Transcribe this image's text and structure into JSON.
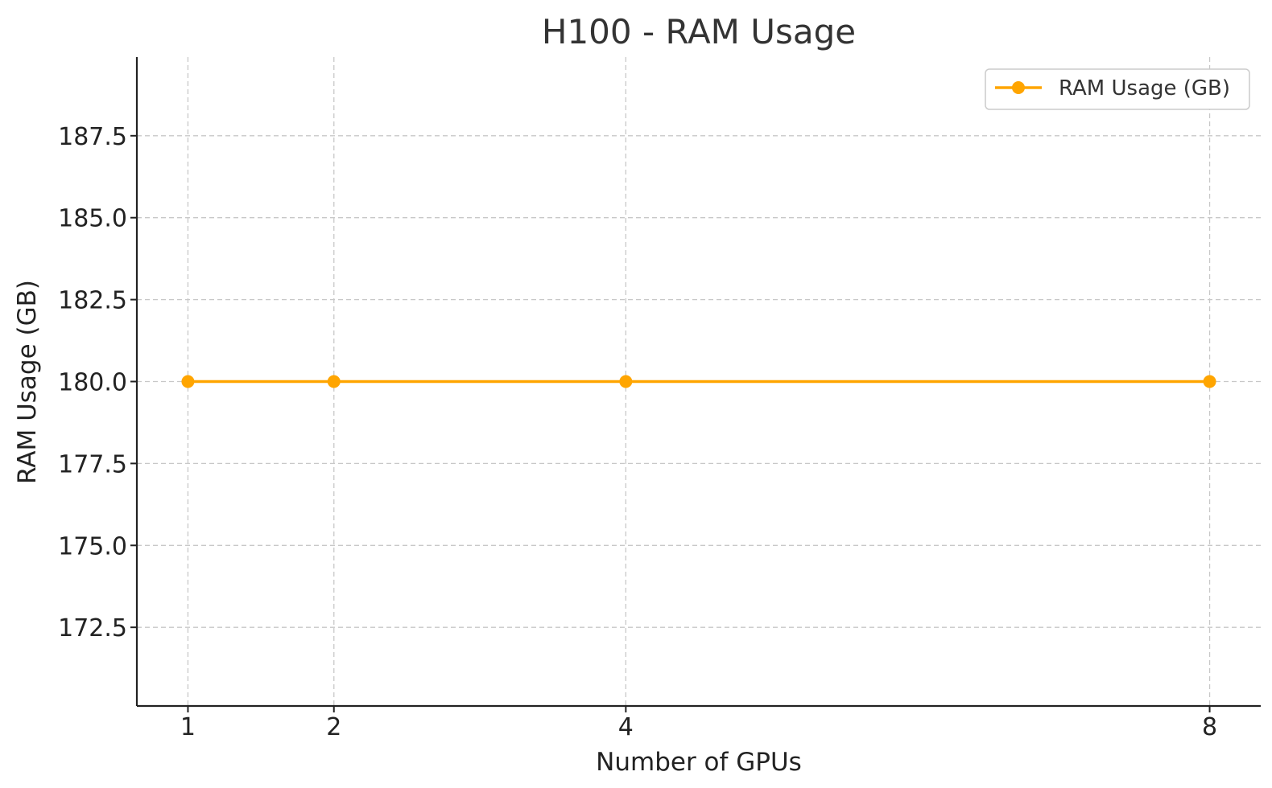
{
  "chart_data": {
    "type": "line",
    "title": "H100 - RAM Usage",
    "xlabel": "Number of GPUs",
    "ylabel": "RAM Usage (GB)",
    "x": [
      1,
      2,
      4,
      8
    ],
    "xticks": [
      "1",
      "2",
      "4",
      "8"
    ],
    "yticks": [
      "172.5",
      "175.0",
      "177.5",
      "180.0",
      "182.5",
      "185.0",
      "187.5"
    ],
    "ylim": [
      170.1,
      189.9
    ],
    "xlim": [
      0.65,
      8.35
    ],
    "grid": true,
    "legend_position": "top-right",
    "series": [
      {
        "name": "RAM Usage (GB)",
        "values": [
          180,
          180,
          180,
          180
        ],
        "color": "#FFA500"
      }
    ]
  }
}
